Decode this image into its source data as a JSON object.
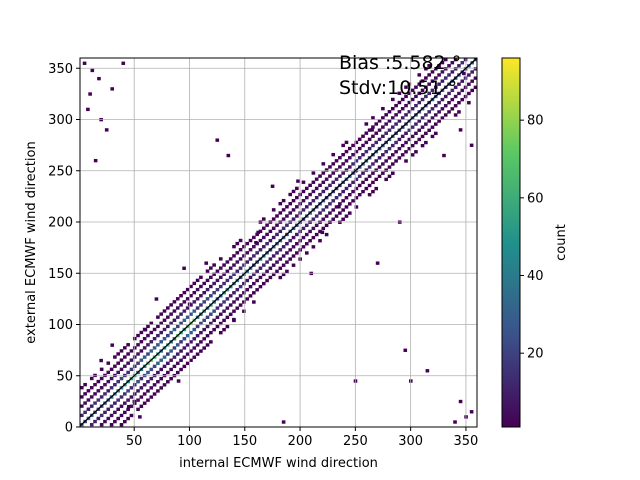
{
  "chart_data": {
    "type": "heatmap",
    "xlabel": "internal ECMWF wind direction",
    "ylabel": "external ECMWF wind direction",
    "xlim": [
      1,
      360
    ],
    "ylim": [
      0,
      360
    ],
    "xticks": [
      50,
      100,
      150,
      200,
      250,
      300,
      350
    ],
    "yticks": [
      0,
      50,
      100,
      150,
      200,
      250,
      300,
      350
    ],
    "grid": true,
    "colormap": "viridis",
    "colorbar": {
      "label": "count",
      "range": [
        1,
        96
      ],
      "ticks": [
        20,
        40,
        60,
        80
      ]
    },
    "annotations": {
      "bias": "Bias :5.582 °",
      "stdv": "Stdv:10.51 °"
    },
    "reference_line": {
      "x": [
        0,
        360
      ],
      "y": [
        0,
        360
      ],
      "color": "#000000"
    },
    "bins": 120,
    "density_profile": [
      {
        "offset": 0,
        "count": 60
      },
      {
        "offset": 3,
        "count": 25
      },
      {
        "offset": 6,
        "count": 8
      },
      {
        "offset": 9,
        "count": 3
      },
      {
        "offset": 12,
        "count": 1
      }
    ],
    "outliers": [
      [
        5,
        355
      ],
      [
        12,
        348
      ],
      [
        18,
        340
      ],
      [
        20,
        300
      ],
      [
        25,
        290
      ],
      [
        10,
        325
      ],
      [
        8,
        310
      ],
      [
        15,
        260
      ],
      [
        30,
        330
      ],
      [
        40,
        355
      ],
      [
        60,
        95
      ],
      [
        70,
        125
      ],
      [
        95,
        155
      ],
      [
        100,
        120
      ],
      [
        115,
        160
      ],
      [
        125,
        280
      ],
      [
        135,
        265
      ],
      [
        160,
        180
      ],
      [
        162,
        190
      ],
      [
        175,
        235
      ],
      [
        198,
        240
      ],
      [
        235,
        215
      ],
      [
        250,
        45
      ],
      [
        265,
        290
      ],
      [
        290,
        200
      ],
      [
        295,
        75
      ],
      [
        300,
        45
      ],
      [
        315,
        55
      ],
      [
        345,
        25
      ],
      [
        340,
        5
      ],
      [
        350,
        10
      ],
      [
        355,
        15
      ],
      [
        348,
        345
      ],
      [
        330,
        265
      ],
      [
        345,
        290
      ],
      [
        355,
        275
      ],
      [
        20,
        65
      ],
      [
        30,
        80
      ],
      [
        45,
        20
      ],
      [
        55,
        10
      ],
      [
        50,
        25
      ],
      [
        90,
        45
      ],
      [
        210,
        150
      ],
      [
        185,
        5
      ],
      [
        250,
        250
      ],
      [
        220,
        190
      ],
      [
        140,
        105
      ],
      [
        270,
        160
      ]
    ],
    "colorbar_stops": [
      "#440154",
      "#3b528b",
      "#21918c",
      "#5ec962",
      "#fde725"
    ]
  }
}
